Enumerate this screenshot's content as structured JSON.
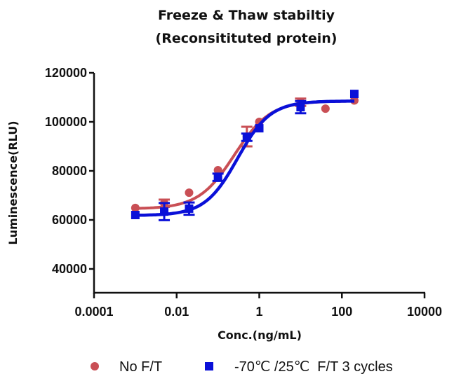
{
  "chart_data": {
    "type": "scatter",
    "title": [
      "Freeze & Thaw stabiltiy",
      "(Reconsitituted protein)"
    ],
    "xlabel": "Conc.(ng/mL)",
    "ylabel": "Luminescence(RLU)",
    "xscale": "log",
    "xlim": [
      0.0001,
      10000
    ],
    "ylim": [
      30000,
      120000
    ],
    "xticks": [
      0.0001,
      0.01,
      1,
      100,
      10000
    ],
    "xtick_labels": [
      "0.0001",
      "0.01",
      "1",
      "100",
      "10000"
    ],
    "yticks": [
      40000,
      60000,
      80000,
      100000,
      120000
    ],
    "ytick_labels": [
      "40000",
      "60000",
      "80000",
      "100000",
      "120000"
    ],
    "grid": false,
    "legend_position": "bottom",
    "series": [
      {
        "name": "No F/T",
        "marker": "circle",
        "color": "#c94f55",
        "x": [
          0.001,
          0.005,
          0.02,
          0.1,
          0.5,
          1,
          10,
          40,
          200
        ],
        "y": [
          64900,
          66800,
          71100,
          80300,
          94000,
          100000,
          108000,
          105400,
          108700
        ],
        "err": [
          0,
          1500,
          0,
          0,
          4000,
          0,
          1500,
          0,
          0
        ],
        "fit": {
          "bottom": 64500,
          "top": 108500,
          "ec50": 0.25,
          "hill": 1.0
        }
      },
      {
        "name": "-70℃ /25℃  F/T 3 cycles",
        "marker": "square",
        "color": "#0a10d8",
        "x": [
          0.001,
          0.005,
          0.02,
          0.1,
          0.5,
          1,
          10,
          200
        ],
        "y": [
          62000,
          63400,
          64600,
          77400,
          93700,
          97400,
          106000,
          111400
        ],
        "err": [
          0,
          3500,
          2500,
          1500,
          1500,
          0,
          2500,
          0
        ],
        "fit": {
          "bottom": 61800,
          "top": 108500,
          "ec50": 0.3,
          "hill": 1.1
        }
      }
    ]
  }
}
